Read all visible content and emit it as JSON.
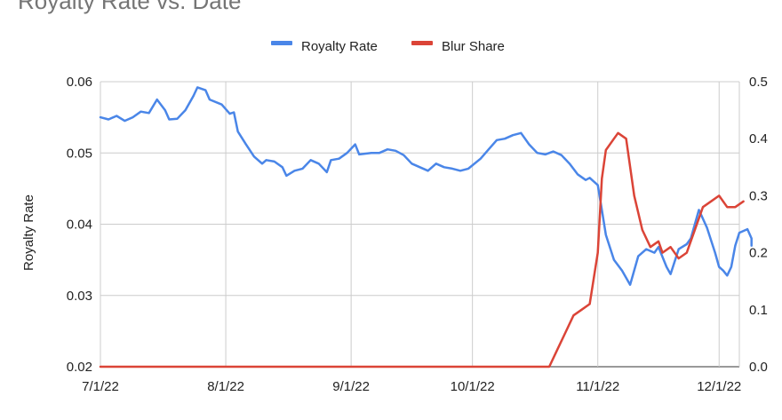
{
  "chart_data": {
    "type": "line",
    "title": "Royalty Rate vs. Date",
    "xlabel": "",
    "ylabel": "Royalty Rate",
    "y2label": "",
    "x_ticks": [
      "7/1/22",
      "8/1/22",
      "9/1/22",
      "10/1/22",
      "11/1/22",
      "12/1/22"
    ],
    "y_ticks": [
      "0.02",
      "0.03",
      "0.04",
      "0.05",
      "0.06"
    ],
    "y2_ticks": [
      "0.0",
      "0.1",
      "0.2",
      "0.3",
      "0.4",
      "0.5"
    ],
    "xlim": [
      "2022-07-01",
      "2022-12-06"
    ],
    "ylim": [
      0.02,
      0.06
    ],
    "y2lim": [
      0,
      0.5
    ],
    "grid": true,
    "legend_position": "top",
    "series": [
      {
        "name": "Royalty Rate",
        "axis": "left",
        "color": "#4a86e8",
        "points": [
          [
            "2022-07-01",
            0.055
          ],
          [
            "2022-07-03",
            0.0547
          ],
          [
            "2022-07-05",
            0.0552
          ],
          [
            "2022-07-07",
            0.0545
          ],
          [
            "2022-07-09",
            0.055
          ],
          [
            "2022-07-11",
            0.0558
          ],
          [
            "2022-07-13",
            0.0556
          ],
          [
            "2022-07-15",
            0.0575
          ],
          [
            "2022-07-17",
            0.056
          ],
          [
            "2022-07-18",
            0.0547
          ],
          [
            "2022-07-20",
            0.0548
          ],
          [
            "2022-07-22",
            0.056
          ],
          [
            "2022-07-24",
            0.058
          ],
          [
            "2022-07-25",
            0.0592
          ],
          [
            "2022-07-27",
            0.0588
          ],
          [
            "2022-07-28",
            0.0575
          ],
          [
            "2022-07-31",
            0.0568
          ],
          [
            "2022-08-02",
            0.0555
          ],
          [
            "2022-08-03",
            0.0557
          ],
          [
            "2022-08-04",
            0.053
          ],
          [
            "2022-08-06",
            0.0512
          ],
          [
            "2022-08-08",
            0.0495
          ],
          [
            "2022-08-10",
            0.0485
          ],
          [
            "2022-08-11",
            0.049
          ],
          [
            "2022-08-13",
            0.0488
          ],
          [
            "2022-08-15",
            0.048
          ],
          [
            "2022-08-16",
            0.0468
          ],
          [
            "2022-08-18",
            0.0475
          ],
          [
            "2022-08-20",
            0.0478
          ],
          [
            "2022-08-22",
            0.049
          ],
          [
            "2022-08-24",
            0.0485
          ],
          [
            "2022-08-26",
            0.0473
          ],
          [
            "2022-08-27",
            0.049
          ],
          [
            "2022-08-29",
            0.0492
          ],
          [
            "2022-08-31",
            0.05
          ],
          [
            "2022-09-02",
            0.0512
          ],
          [
            "2022-09-03",
            0.0498
          ],
          [
            "2022-09-06",
            0.05
          ],
          [
            "2022-09-08",
            0.05
          ],
          [
            "2022-09-10",
            0.0505
          ],
          [
            "2022-09-12",
            0.0503
          ],
          [
            "2022-09-14",
            0.0497
          ],
          [
            "2022-09-16",
            0.0485
          ],
          [
            "2022-09-18",
            0.048
          ],
          [
            "2022-09-20",
            0.0475
          ],
          [
            "2022-09-22",
            0.0485
          ],
          [
            "2022-09-24",
            0.048
          ],
          [
            "2022-09-26",
            0.0478
          ],
          [
            "2022-09-28",
            0.0475
          ],
          [
            "2022-09-30",
            0.0478
          ],
          [
            "2022-10-03",
            0.0492
          ],
          [
            "2022-10-05",
            0.0505
          ],
          [
            "2022-10-07",
            0.0518
          ],
          [
            "2022-10-09",
            0.052
          ],
          [
            "2022-10-11",
            0.0525
          ],
          [
            "2022-10-13",
            0.0528
          ],
          [
            "2022-10-15",
            0.0512
          ],
          [
            "2022-10-17",
            0.05
          ],
          [
            "2022-10-19",
            0.0498
          ],
          [
            "2022-10-21",
            0.0502
          ],
          [
            "2022-10-23",
            0.0497
          ],
          [
            "2022-10-25",
            0.0485
          ],
          [
            "2022-10-27",
            0.047
          ],
          [
            "2022-10-29",
            0.0462
          ],
          [
            "2022-10-30",
            0.0465
          ],
          [
            "2022-11-01",
            0.0455
          ],
          [
            "2022-11-02",
            0.042
          ],
          [
            "2022-11-03",
            0.0385
          ],
          [
            "2022-11-05",
            0.035
          ],
          [
            "2022-11-07",
            0.0335
          ],
          [
            "2022-11-09",
            0.0315
          ],
          [
            "2022-11-11",
            0.0355
          ],
          [
            "2022-11-13",
            0.0365
          ],
          [
            "2022-11-15",
            0.036
          ],
          [
            "2022-11-16",
            0.0368
          ],
          [
            "2022-11-18",
            0.034
          ],
          [
            "2022-11-19",
            0.033
          ],
          [
            "2022-11-21",
            0.0365
          ],
          [
            "2022-11-23",
            0.0372
          ],
          [
            "2022-11-24",
            0.038
          ],
          [
            "2022-11-26",
            0.042
          ],
          [
            "2022-11-28",
            0.0395
          ],
          [
            "2022-11-30",
            0.036
          ],
          [
            "2022-12-01",
            0.034
          ],
          [
            "2022-12-02",
            0.0335
          ],
          [
            "2022-12-03",
            0.0328
          ],
          [
            "2022-12-04",
            0.034
          ],
          [
            "2022-12-05",
            0.037
          ],
          [
            "2022-12-06",
            0.0388
          ],
          [
            "2022-12-08",
            0.0393
          ],
          [
            "2022-12-09",
            0.038
          ],
          [
            "2022-12-09",
            0.037
          ]
        ]
      },
      {
        "name": "Blur Share",
        "axis": "right",
        "color": "#db4437",
        "points": [
          [
            "2022-07-01",
            0.0
          ],
          [
            "2022-10-20",
            0.0
          ],
          [
            "2022-10-22",
            0.03
          ],
          [
            "2022-10-24",
            0.06
          ],
          [
            "2022-10-26",
            0.09
          ],
          [
            "2022-10-28",
            0.1
          ],
          [
            "2022-10-30",
            0.11
          ],
          [
            "2022-11-01",
            0.2
          ],
          [
            "2022-11-02",
            0.33
          ],
          [
            "2022-11-03",
            0.38
          ],
          [
            "2022-11-05",
            0.4
          ],
          [
            "2022-11-06",
            0.41
          ],
          [
            "2022-11-08",
            0.4
          ],
          [
            "2022-11-10",
            0.3
          ],
          [
            "2022-11-12",
            0.24
          ],
          [
            "2022-11-14",
            0.21
          ],
          [
            "2022-11-16",
            0.22
          ],
          [
            "2022-11-17",
            0.2
          ],
          [
            "2022-11-19",
            0.21
          ],
          [
            "2022-11-21",
            0.19
          ],
          [
            "2022-11-23",
            0.2
          ],
          [
            "2022-11-25",
            0.24
          ],
          [
            "2022-11-27",
            0.28
          ],
          [
            "2022-11-29",
            0.29
          ],
          [
            "2022-12-01",
            0.3
          ],
          [
            "2022-12-03",
            0.28
          ],
          [
            "2022-12-05",
            0.28
          ],
          [
            "2022-12-07",
            0.29
          ]
        ]
      }
    ]
  }
}
